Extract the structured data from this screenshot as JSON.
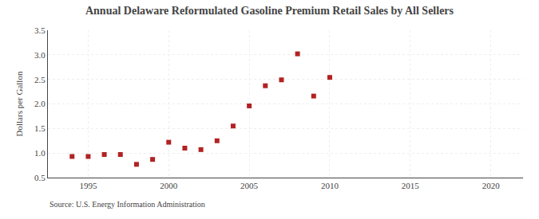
{
  "chart_data": {
    "type": "scatter",
    "title": "Annual Delaware Reformulated Gasoline Premium Retail Sales by All Sellers",
    "ylabel": "Dollars per Gallon",
    "annotations": [
      "Source: U.S. Energy Information Administration"
    ],
    "x": [
      1994,
      1995,
      1996,
      1997,
      1998,
      1999,
      2000,
      2001,
      2002,
      2003,
      2004,
      2005,
      2006,
      2007,
      2008,
      2009,
      2010
    ],
    "values": [
      0.93,
      0.93,
      0.97,
      0.97,
      0.77,
      0.87,
      1.22,
      1.1,
      1.07,
      1.25,
      1.55,
      1.96,
      2.37,
      2.49,
      3.02,
      2.16,
      2.54
    ],
    "color": "#b22222",
    "marker": "square",
    "xlim": [
      1992.5,
      2022
    ],
    "xticks": [
      1995,
      2000,
      2005,
      2010,
      2015,
      2020
    ],
    "ylim": [
      0.5,
      3.5
    ],
    "yticks": [
      0.5,
      {
        "value": 1,
        "label": "1.0"
      },
      1.5,
      {
        "value": 2,
        "label": "2.0"
      },
      2.5,
      {
        "value": 3,
        "label": "3.0"
      },
      3.5
    ],
    "grid": true
  }
}
